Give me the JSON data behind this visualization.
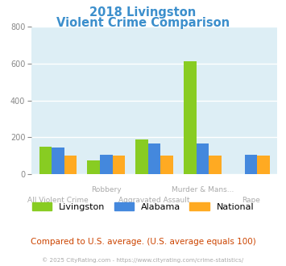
{
  "title_line1": "2018 Livingston",
  "title_line2": "Violent Crime Comparison",
  "title_color": "#3c8fcc",
  "categories": [
    "All Violent Crime",
    "Robbery",
    "Aggravated Assault",
    "Murder & Mans...",
    "Rape"
  ],
  "x_labels_row1": [
    "",
    "Robbery",
    "",
    "Murder & Mans...",
    ""
  ],
  "x_labels_row2": [
    "All Violent Crime",
    "",
    "Aggravated Assault",
    "",
    "Rape"
  ],
  "livingston": [
    150,
    75,
    190,
    610,
    0
  ],
  "alabama": [
    145,
    105,
    165,
    165,
    105
  ],
  "national": [
    100,
    100,
    100,
    100,
    100
  ],
  "livingston_color": "#88cc22",
  "alabama_color": "#4488dd",
  "national_color": "#ffaa22",
  "ylim": [
    0,
    800
  ],
  "yticks": [
    0,
    200,
    400,
    600,
    800
  ],
  "plot_bg": "#ddeef5",
  "footer_text": "© 2025 CityRating.com - https://www.cityrating.com/crime-statistics/",
  "note_text": "Compared to U.S. average. (U.S. average equals 100)",
  "note_color": "#cc4400",
  "footer_color": "#aaaaaa",
  "label_color": "#aaaaaa"
}
